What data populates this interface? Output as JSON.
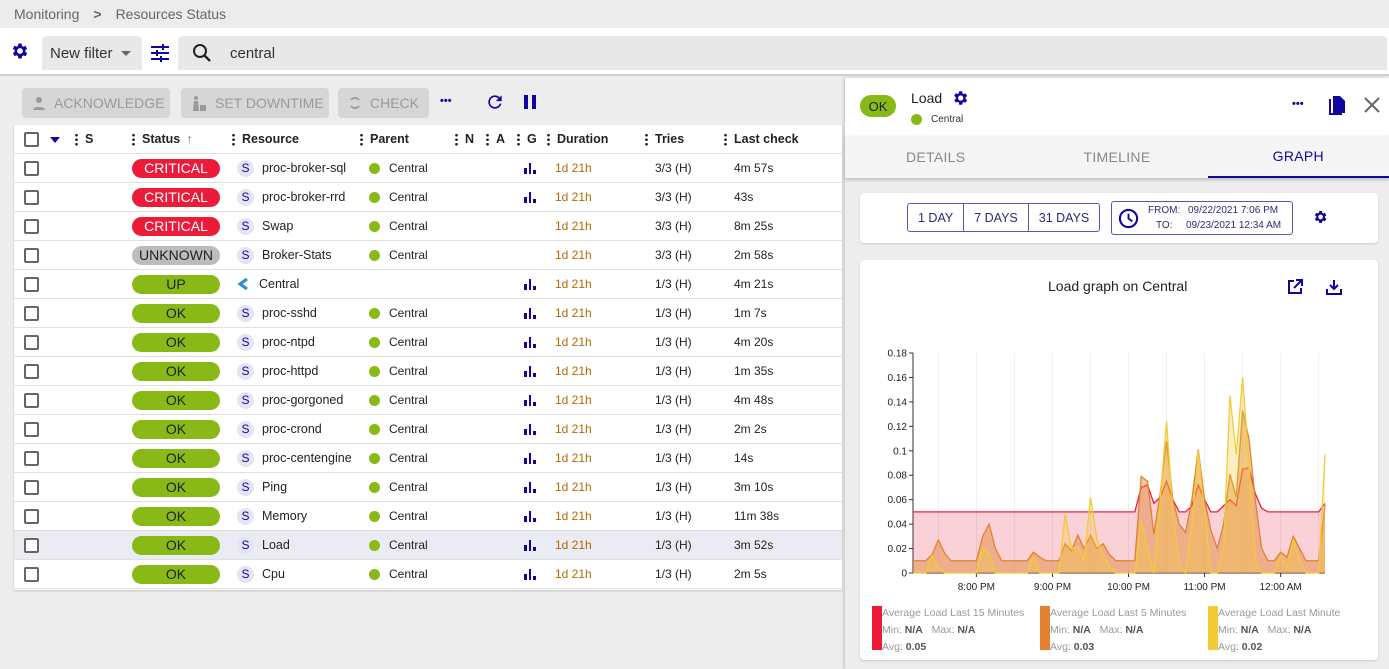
{
  "breadcrumb": {
    "items": [
      "Monitoring",
      "Resources Status"
    ],
    "separator": ">"
  },
  "filter": {
    "selected": "New filter",
    "search_value": "central"
  },
  "actions": {
    "acknowledge": "ACKNOWLEDGE",
    "set_downtime": "SET DOWNTIME",
    "check": "CHECK",
    "more": "•••"
  },
  "table": {
    "columns": [
      "S",
      "Status",
      "Resource",
      "Parent",
      "N",
      "A",
      "G",
      "Duration",
      "Tries",
      "Last check"
    ],
    "rows": [
      {
        "status": "CRITICAL",
        "type": "S",
        "resource": "proc-broker-sql",
        "parent": "Central",
        "graph": true,
        "duration": "1d 21h",
        "tries": "3/3 (H)",
        "last_check": "4m 57s"
      },
      {
        "status": "CRITICAL",
        "type": "S",
        "resource": "proc-broker-rrd",
        "parent": "Central",
        "graph": true,
        "duration": "1d 21h",
        "tries": "3/3 (H)",
        "last_check": "43s"
      },
      {
        "status": "CRITICAL",
        "type": "S",
        "resource": "Swap",
        "parent": "Central",
        "graph": false,
        "duration": "1d 21h",
        "tries": "3/3 (H)",
        "last_check": "8m 25s"
      },
      {
        "status": "UNKNOWN",
        "type": "S",
        "resource": "Broker-Stats",
        "parent": "Central",
        "graph": false,
        "duration": "1d 21h",
        "tries": "3/3 (H)",
        "last_check": "2m 58s"
      },
      {
        "status": "UP",
        "type": "host",
        "resource": "Central",
        "parent": "",
        "graph": true,
        "duration": "1d 21h",
        "tries": "1/3 (H)",
        "last_check": "4m 21s"
      },
      {
        "status": "OK",
        "type": "S",
        "resource": "proc-sshd",
        "parent": "Central",
        "graph": true,
        "duration": "1d 21h",
        "tries": "1/3 (H)",
        "last_check": "1m 7s"
      },
      {
        "status": "OK",
        "type": "S",
        "resource": "proc-ntpd",
        "parent": "Central",
        "graph": true,
        "duration": "1d 21h",
        "tries": "1/3 (H)",
        "last_check": "4m 20s"
      },
      {
        "status": "OK",
        "type": "S",
        "resource": "proc-httpd",
        "parent": "Central",
        "graph": true,
        "duration": "1d 21h",
        "tries": "1/3 (H)",
        "last_check": "1m 35s"
      },
      {
        "status": "OK",
        "type": "S",
        "resource": "proc-gorgoned",
        "parent": "Central",
        "graph": true,
        "duration": "1d 21h",
        "tries": "1/3 (H)",
        "last_check": "4m 48s"
      },
      {
        "status": "OK",
        "type": "S",
        "resource": "proc-crond",
        "parent": "Central",
        "graph": true,
        "duration": "1d 21h",
        "tries": "1/3 (H)",
        "last_check": "2m 2s"
      },
      {
        "status": "OK",
        "type": "S",
        "resource": "proc-centengine",
        "parent": "Central",
        "graph": true,
        "duration": "1d 21h",
        "tries": "1/3 (H)",
        "last_check": "14s"
      },
      {
        "status": "OK",
        "type": "S",
        "resource": "Ping",
        "parent": "Central",
        "graph": true,
        "duration": "1d 21h",
        "tries": "1/3 (H)",
        "last_check": "3m 10s"
      },
      {
        "status": "OK",
        "type": "S",
        "resource": "Memory",
        "parent": "Central",
        "graph": true,
        "duration": "1d 21h",
        "tries": "1/3 (H)",
        "last_check": "11m 38s"
      },
      {
        "status": "OK",
        "type": "S",
        "resource": "Load",
        "parent": "Central",
        "graph": true,
        "duration": "1d 21h",
        "tries": "1/3 (H)",
        "last_check": "3m 52s",
        "selected": true
      },
      {
        "status": "OK",
        "type": "S",
        "resource": "Cpu",
        "parent": "Central",
        "graph": true,
        "duration": "1d 21h",
        "tries": "1/3 (H)",
        "last_check": "2m 5s"
      }
    ]
  },
  "colors": {
    "primary": "#10069f",
    "critical": "#ed1b3a",
    "unknown": "#bcbcbc",
    "ok": "#88b917"
  },
  "panel": {
    "status": "OK",
    "title": "Load",
    "parent": "Central",
    "tabs": [
      "DETAILS",
      "TIMELINE",
      "GRAPH"
    ],
    "active_tab": "GRAPH",
    "periods": [
      "1 DAY",
      "7 DAYS",
      "31 DAYS"
    ],
    "from_label": "FROM:",
    "from": "09/22/2021 7:06 PM",
    "to_label": "TO:",
    "to": "09/23/2021 12:34 AM"
  },
  "chart_data": {
    "type": "area",
    "title": "Load graph on Central",
    "ylim": [
      0,
      0.18
    ],
    "yticks": [
      "0",
      "0.02",
      "0.04",
      "0.06",
      "0.08",
      "0.1",
      "0.12",
      "0.14",
      "0.16",
      "0.18"
    ],
    "xticks": [
      "8:00 PM",
      "9:00 PM",
      "10:00 PM",
      "11:00 PM",
      "12:00 AM"
    ],
    "x_start": "19:10",
    "x_step_minutes": 5,
    "series": [
      {
        "name": "Average Load Last 15 Minutes",
        "color": "#ed1b3a",
        "min": "N/A",
        "max": "N/A",
        "avg": "0.05",
        "values": [
          0.05,
          0.05,
          0.05,
          0.05,
          0.05,
          0.05,
          0.05,
          0.05,
          0.05,
          0.05,
          0.05,
          0.05,
          0.05,
          0.05,
          0.05,
          0.05,
          0.05,
          0.05,
          0.05,
          0.05,
          0.05,
          0.05,
          0.05,
          0.05,
          0.05,
          0.05,
          0.05,
          0.05,
          0.05,
          0.05,
          0.05,
          0.05,
          0.05,
          0.05,
          0.05,
          0.05,
          0.07,
          0.072,
          0.057,
          0.062,
          0.075,
          0.06,
          0.05,
          0.05,
          0.055,
          0.072,
          0.06,
          0.05,
          0.05,
          0.055,
          0.06,
          0.055,
          0.085,
          0.086,
          0.065,
          0.053,
          0.05,
          0.05,
          0.05,
          0.05,
          0.05,
          0.05,
          0.05,
          0.05,
          0.05,
          0.057
        ]
      },
      {
        "name": "Average Load Last 5 Minutes",
        "color": "#e0822e",
        "min": "N/A",
        "max": "N/A",
        "avg": "0.03",
        "values": [
          0.01,
          0.01,
          0.01,
          0.015,
          0.027,
          0.016,
          0.01,
          0.01,
          0.01,
          0.01,
          0.01,
          0.03,
          0.04,
          0.02,
          0.01,
          0.01,
          0.01,
          0.01,
          0.01,
          0.017,
          0.013,
          0.01,
          0.01,
          0.01,
          0.024,
          0.018,
          0.031,
          0.02,
          0.031,
          0.02,
          0.024,
          0.015,
          0.01,
          0.01,
          0.01,
          0.01,
          0.079,
          0.075,
          0.032,
          0.065,
          0.108,
          0.06,
          0.04,
          0.033,
          0.06,
          0.101,
          0.06,
          0.035,
          0.02,
          0.04,
          0.081,
          0.062,
          0.133,
          0.11,
          0.06,
          0.02,
          0.01,
          0.01,
          0.017,
          0.013,
          0.03,
          0.02,
          0.01,
          0.01,
          0.01,
          0.056
        ]
      },
      {
        "name": "Average Load Last Minute",
        "color": "#f2cb35",
        "min": "N/A",
        "max": "N/A",
        "avg": "0.02",
        "values": [
          0,
          0,
          0,
          0.014,
          0.005,
          0,
          0,
          0,
          0,
          0,
          0,
          0.021,
          0.016,
          0,
          0,
          0,
          0,
          0,
          0,
          0.014,
          0,
          0,
          0,
          0,
          0.048,
          0.02,
          0.021,
          0.01,
          0.062,
          0.028,
          0.015,
          0.005,
          0,
          0,
          0,
          0,
          0.042,
          0.02,
          0,
          0.06,
          0.124,
          0.05,
          0.007,
          0,
          0.04,
          0.1,
          0.05,
          0,
          0,
          0.02,
          0.145,
          0.097,
          0.16,
          0.09,
          0.01,
          0,
          0,
          0,
          0.014,
          0.005,
          0.027,
          0.01,
          0,
          0,
          0,
          0.097
        ]
      }
    ],
    "legend_labels": {
      "min": "Min:",
      "max": "Max:",
      "avg": "Avg:"
    },
    "grid": "vertical",
    "legend": "bottom"
  }
}
